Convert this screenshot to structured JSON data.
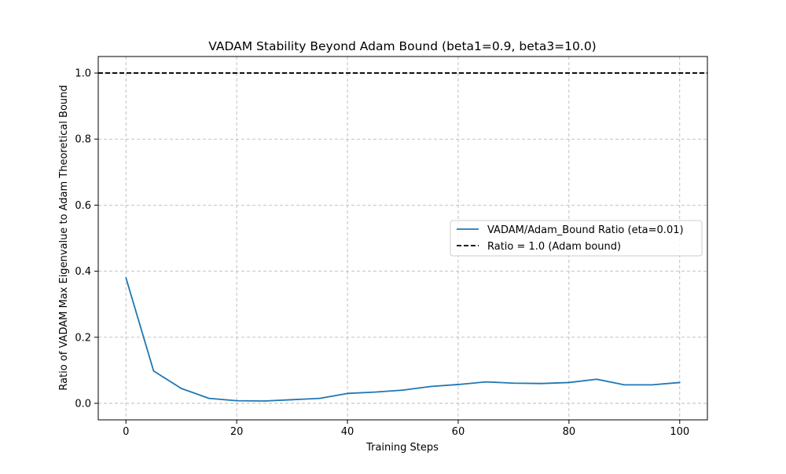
{
  "chart_data": {
    "type": "line",
    "title": "VADAM Stability Beyond Adam Bound (beta1=0.9, beta3=10.0)",
    "xlabel": "Training Steps",
    "ylabel": "Ratio of VADAM Max Eigenvalue to Adam Theoretical Bound",
    "xlim": [
      -5,
      105
    ],
    "ylim": [
      -0.05,
      1.05
    ],
    "xticks": [
      0,
      20,
      40,
      60,
      80,
      100
    ],
    "xtick_labels": [
      "0",
      "20",
      "40",
      "60",
      "80",
      "100"
    ],
    "yticks": [
      0.0,
      0.2,
      0.4,
      0.6,
      0.8,
      1.0
    ],
    "ytick_labels": [
      "0.0",
      "0.2",
      "0.4",
      "0.6",
      "0.8",
      "1.0"
    ],
    "grid": true,
    "legend_position": "center-right",
    "series": [
      {
        "name": "VADAM/Adam_Bound Ratio (eta=0.01)",
        "color": "#1f77b4",
        "style": "solid",
        "x": [
          0,
          5,
          10,
          15,
          20,
          25,
          30,
          35,
          40,
          45,
          50,
          55,
          60,
          65,
          70,
          75,
          80,
          85,
          90,
          95,
          100
        ],
        "y": [
          0.38,
          0.098,
          0.045,
          0.015,
          0.008,
          0.007,
          0.011,
          0.015,
          0.03,
          0.034,
          0.04,
          0.051,
          0.057,
          0.065,
          0.061,
          0.06,
          0.063,
          0.073,
          0.056,
          0.056,
          0.063
        ]
      }
    ],
    "reference_lines": [
      {
        "name": "Ratio = 1.0 (Adam bound)",
        "y": 1.0,
        "color": "#000000",
        "style": "dashed"
      }
    ]
  }
}
